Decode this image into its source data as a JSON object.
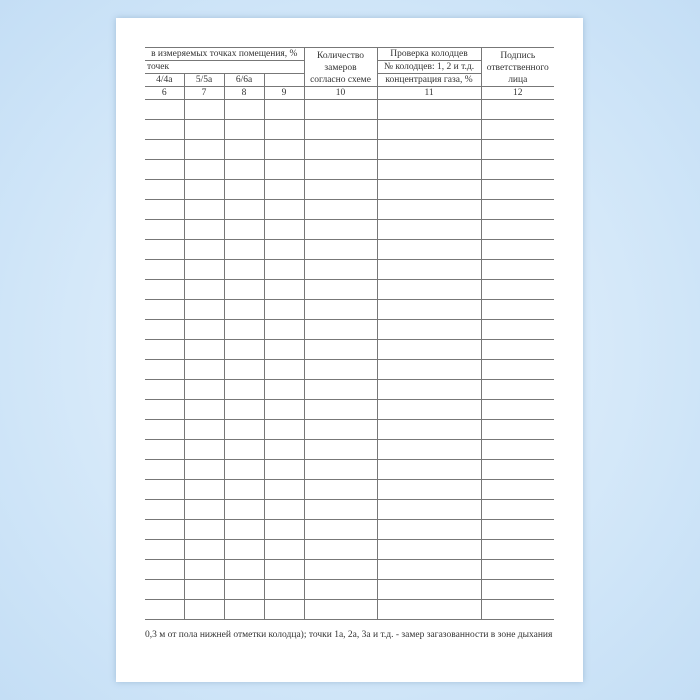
{
  "header": {
    "group_title": "в измеряемых точках помещения, %",
    "group_sub": "точек",
    "points": [
      "4/4а",
      "5/5а",
      "6/6а",
      ""
    ],
    "count_title": [
      "Количество",
      "замеров",
      "согласно схеме"
    ],
    "wells_title": "Проверка колодцев",
    "wells_numbers": "№ колодцев: 1, 2 и т.д.",
    "wells_conc": "концентрация газа, %",
    "signature_title": [
      "Подпись",
      "ответственного",
      "лица"
    ]
  },
  "column_numbers": [
    "6",
    "7",
    "8",
    "9",
    "10",
    "11",
    "12"
  ],
  "empty_rows": 26,
  "footnote": "0,3 м от пола нижней отметки колодца); точки 1а, 2а, 3а и т.д. - замер загазованности в зоне дыхания"
}
